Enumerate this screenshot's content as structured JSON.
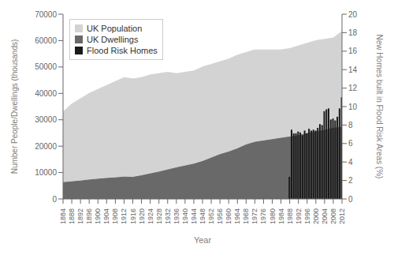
{
  "chart_data": {
    "type": "area",
    "xlabel": "Year",
    "ylabel": "Number People/Dwellings (thousands)",
    "y2label": "New Homes built in Flood Risk Areas (%)",
    "x": [
      1884,
      1888,
      1892,
      1896,
      1900,
      1904,
      1908,
      1912,
      1916,
      1920,
      1924,
      1928,
      1932,
      1936,
      1940,
      1944,
      1948,
      1952,
      1956,
      1960,
      1964,
      1968,
      1972,
      1976,
      1980,
      1984,
      1988,
      1992,
      1996,
      2000,
      2004,
      2008,
      2012
    ],
    "series": [
      {
        "name": "UK Population",
        "type": "area",
        "color": "#d3d3d3",
        "values": [
          33000,
          36000,
          38000,
          40000,
          41500,
          43000,
          44500,
          46000,
          45500,
          46000,
          47000,
          47500,
          48000,
          47500,
          48000,
          48500,
          50000,
          51000,
          52000,
          53000,
          54500,
          55500,
          56500,
          56500,
          56500,
          56500,
          57000,
          58000,
          59000,
          60000,
          60500,
          61000,
          63500
        ]
      },
      {
        "name": "UK Dwellings",
        "type": "area",
        "color": "#696969",
        "values": [
          6200,
          6500,
          6800,
          7200,
          7500,
          7800,
          8000,
          8300,
          8200,
          8800,
          9500,
          10200,
          11000,
          11800,
          12500,
          13200,
          14200,
          15500,
          16800,
          17800,
          19000,
          20500,
          21500,
          22000,
          22500,
          23000,
          23500,
          24000,
          24800,
          25500,
          26000,
          26800,
          27200
        ]
      },
      {
        "name": "Flood Risk Homes",
        "type": "bar",
        "axis": "y2",
        "color": "#1a1a1a",
        "x": [
          1988,
          1989,
          1990,
          1991,
          1992,
          1993,
          1994,
          1995,
          1996,
          1997,
          1998,
          1999,
          2000,
          2001,
          2002,
          2003,
          2004,
          2005,
          2006,
          2007,
          2008,
          2009,
          2010,
          2011,
          2012
        ],
        "values": [
          2.4,
          7.5,
          7.1,
          7.1,
          7.3,
          7.2,
          6.9,
          7.4,
          7.1,
          7.6,
          7.4,
          7.5,
          7.4,
          7.7,
          8.1,
          8.0,
          9.5,
          9.7,
          9.8,
          8.6,
          8.7,
          8.5,
          8.9,
          9.8,
          11.0
        ]
      }
    ],
    "xlim": [
      1884,
      2012
    ],
    "xticks": [
      1884,
      1888,
      1892,
      1896,
      1900,
      1904,
      1908,
      1912,
      1916,
      1920,
      1924,
      1928,
      1932,
      1936,
      1940,
      1944,
      1948,
      1952,
      1956,
      1960,
      1964,
      1968,
      1972,
      1976,
      1980,
      1984,
      1988,
      1992,
      1996,
      2000,
      2004,
      2008,
      2012
    ],
    "ylim": [
      0,
      70000
    ],
    "yticks": [
      0,
      10000,
      20000,
      30000,
      40000,
      50000,
      60000,
      70000
    ],
    "y2lim": [
      0,
      20
    ],
    "y2ticks": [
      0,
      2,
      4,
      6,
      8,
      10,
      12,
      14,
      16,
      18,
      20
    ],
    "legend": "upper left",
    "grid": false
  }
}
